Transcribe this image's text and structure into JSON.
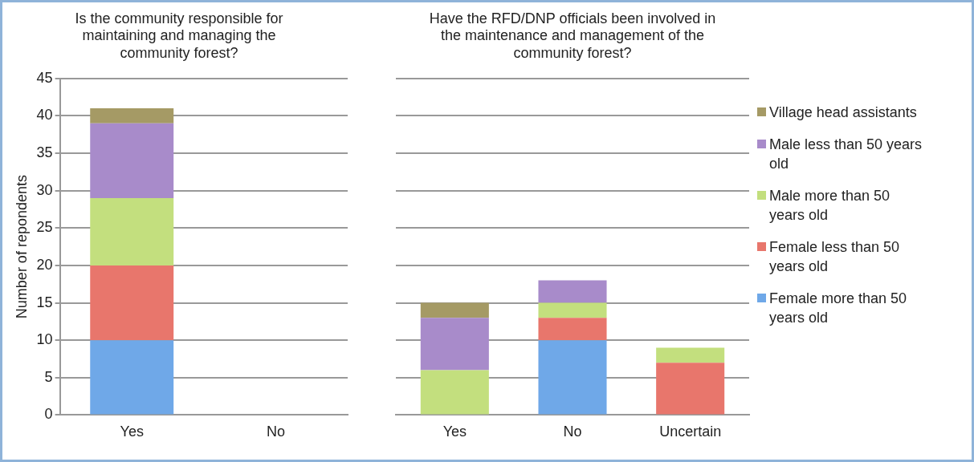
{
  "chart_data": [
    {
      "type": "bar",
      "title": "Is the community responsible for maintaining and managing the community forest?",
      "ylabel": "Number of repondents",
      "categories": [
        "Yes",
        "No"
      ],
      "stacked": true,
      "ylim": [
        0,
        45
      ],
      "yticks": [
        0,
        5,
        10,
        15,
        20,
        25,
        30,
        35,
        40,
        45
      ],
      "grid": "y",
      "series": [
        {
          "color": "#6fa8e8",
          "values": [
            10,
            null
          ]
        },
        {
          "color": "#e8766c",
          "values": [
            10,
            null
          ]
        },
        {
          "color": "#c3df7e",
          "values": [
            9,
            null
          ]
        },
        {
          "color": "#a88bca",
          "values": [
            10,
            null
          ]
        },
        {
          "color": "#a59a65",
          "values": [
            2,
            null
          ]
        }
      ]
    },
    {
      "type": "bar",
      "title": "Have the RFD/DNP officials been involved in the maintenance and management of the community forest?",
      "categories": [
        "Yes",
        "No",
        "Uncertain"
      ],
      "stacked": true,
      "ylim": [
        0,
        45
      ],
      "yticks": [
        0,
        5,
        10,
        15,
        20,
        25,
        30,
        35,
        40,
        45
      ],
      "grid": "y",
      "tick_labels": "x",
      "legend": "right",
      "series": [
        {
          "name": "Female more than 50 years old",
          "color": "#6fa8e8",
          "values": [
            null,
            10,
            null
          ]
        },
        {
          "name": "Female less than 50 years old",
          "color": "#e8766c",
          "values": [
            null,
            3,
            7
          ]
        },
        {
          "name": "Male more than 50 years old",
          "color": "#c3df7e",
          "values": [
            6,
            2,
            2
          ]
        },
        {
          "name": "Male less than 50 years old",
          "color": "#a88bca",
          "values": [
            7,
            3,
            null
          ]
        },
        {
          "name": "Village head assistants",
          "color": "#a59a65",
          "values": [
            2,
            null,
            null
          ]
        }
      ]
    }
  ]
}
